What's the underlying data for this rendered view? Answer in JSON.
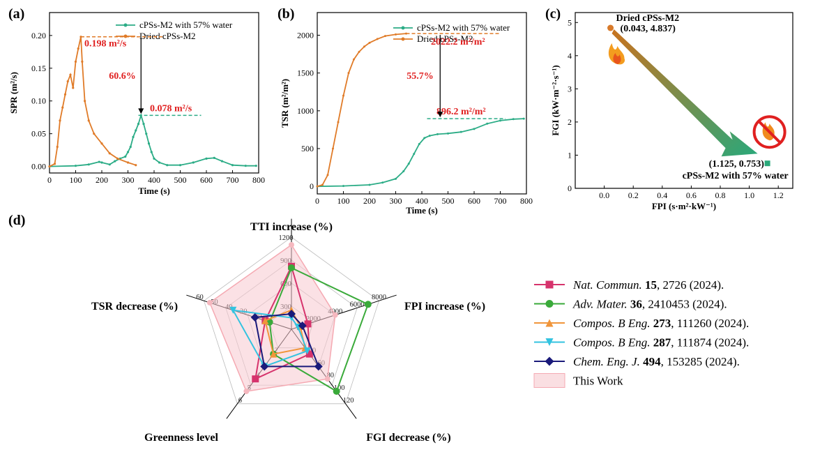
{
  "colors": {
    "wet": "#2bac86",
    "dried": "#e07b28",
    "annot": "#e02020",
    "dash_dried": "#e07b28",
    "dash_wet": "#2bac86"
  },
  "panel_a": {
    "label": "(a)",
    "legend": [
      "cPSs-M2 with 57% water",
      "Dried cPSs-M2"
    ],
    "annotations": {
      "peak_dried": "0.198 m²/s",
      "peak_wet": "0.078 m²/s",
      "reduction": "60.6%"
    }
  },
  "panel_b": {
    "label": "(b)",
    "legend": [
      "cPSs-M2 with 57% water",
      "Dried cPSs-M2"
    ],
    "annotations": {
      "peak_dried": "2022.2 m²/m²",
      "peak_wet": "896.2 m²/m²",
      "reduction": "55.7%"
    }
  },
  "panel_c": {
    "label": "(c)",
    "point_labels": {
      "dried_name": "Dried cPSs-M2",
      "dried_coord": "(0.043, 4.837)",
      "wet_coord": "(1.125, 0.753)",
      "wet_name": "cPSs-M2 with 57% water"
    }
  },
  "panel_d": {
    "label": "(d)",
    "references": [
      {
        "journal": "Nat. Commun.",
        "volume": "15",
        "rest": ", 2726 (2024).",
        "color": "#d6336c",
        "marker": "square"
      },
      {
        "journal": "Adv. Mater.",
        "volume": "36",
        "rest": ", 2410453 (2024).",
        "color": "#3aaa3a",
        "marker": "circle"
      },
      {
        "journal": "Compos. B Eng.",
        "volume": "273",
        "rest": ", 111260 (2024).",
        "color": "#f0953a",
        "marker": "triangle-up"
      },
      {
        "journal": "Compos. B Eng.",
        "volume": "287",
        "rest": ", 111874 (2024).",
        "color": "#33c3e0",
        "marker": "triangle-down"
      },
      {
        "journal": "Chem. Eng. J.",
        "volume": "494",
        "rest": ", 153285 (2024).",
        "color": "#1a1a7a",
        "marker": "diamond"
      }
    ],
    "this_work_label": "This Work",
    "this_work_color": "#f7c9cf"
  },
  "chart_data": [
    {
      "type": "line",
      "xlabel": "Time (s)",
      "ylabel": "SPR (m²/s)",
      "xlim": [
        0,
        800
      ],
      "ylim": [
        -0.01,
        0.235
      ],
      "xticks": [
        0,
        100,
        200,
        300,
        400,
        500,
        600,
        700,
        800
      ],
      "yticks": [
        0.0,
        0.05,
        0.1,
        0.15,
        0.2
      ],
      "ytick_labels": [
        "0.00",
        "0.05",
        "0.10",
        "0.15",
        "0.20"
      ],
      "series": [
        {
          "name": "cPSs-M2 with 57% water",
          "x": [
            0,
            100,
            150,
            190,
            200,
            230,
            250,
            270,
            290,
            300,
            310,
            320,
            330,
            340,
            350,
            360,
            370,
            380,
            390,
            400,
            420,
            450,
            500,
            550,
            600,
            630,
            660,
            700,
            750,
            790
          ],
          "y": [
            0,
            0.001,
            0.003,
            0.007,
            0.006,
            0.003,
            0.008,
            0.012,
            0.015,
            0.022,
            0.03,
            0.045,
            0.055,
            0.065,
            0.078,
            0.065,
            0.05,
            0.035,
            0.022,
            0.012,
            0.006,
            0.002,
            0.002,
            0.006,
            0.012,
            0.013,
            0.008,
            0.002,
            0.001,
            0.001
          ]
        },
        {
          "name": "Dried cPSs-M2",
          "x": [
            0,
            20,
            30,
            40,
            50,
            60,
            70,
            80,
            90,
            100,
            110,
            120,
            125,
            135,
            150,
            170,
            200,
            230,
            260,
            300,
            330
          ],
          "y": [
            0,
            0.004,
            0.03,
            0.07,
            0.09,
            0.11,
            0.13,
            0.14,
            0.12,
            0.16,
            0.18,
            0.198,
            0.16,
            0.1,
            0.07,
            0.05,
            0.035,
            0.02,
            0.012,
            0.006,
            0.002
          ]
        }
      ]
    },
    {
      "type": "line",
      "xlabel": "Time (s)",
      "ylabel": "TSR (m²/m²)",
      "xlim": [
        0,
        800
      ],
      "ylim": [
        -100,
        2300
      ],
      "xticks": [
        0,
        100,
        200,
        300,
        400,
        500,
        600,
        700,
        800
      ],
      "yticks": [
        0,
        500,
        1000,
        1500,
        2000
      ],
      "series": [
        {
          "name": "cPSs-M2 with 57% water",
          "x": [
            0,
            100,
            200,
            250,
            300,
            330,
            350,
            370,
            390,
            410,
            430,
            460,
            500,
            550,
            600,
            650,
            700,
            750,
            790
          ],
          "y": [
            0,
            5,
            20,
            50,
            100,
            200,
            300,
            430,
            560,
            640,
            670,
            690,
            700,
            720,
            760,
            830,
            870,
            890,
            896.2
          ]
        },
        {
          "name": "Dried cPSs-M2",
          "x": [
            0,
            20,
            40,
            60,
            80,
            100,
            120,
            140,
            160,
            180,
            200,
            230,
            260,
            300,
            340
          ],
          "y": [
            0,
            20,
            150,
            500,
            850,
            1200,
            1500,
            1680,
            1780,
            1850,
            1900,
            1950,
            1990,
            2010,
            2022.2
          ]
        }
      ]
    },
    {
      "type": "scatter",
      "xlabel": "FPI (s·m²·kW⁻¹)",
      "ylabel": "FGI (kW·m⁻²·s⁻¹)",
      "xlim": [
        -0.2,
        1.3
      ],
      "ylim": [
        0,
        5.3
      ],
      "xticks": [
        0.0,
        0.2,
        0.4,
        0.6,
        0.8,
        1.0,
        1.2
      ],
      "xtick_labels": [
        "0.0",
        "0.2",
        "0.4",
        "0.6",
        "0.8",
        "1.0",
        "1.2"
      ],
      "yticks": [
        0,
        1,
        2,
        3,
        4,
        5
      ],
      "points": [
        {
          "name": "Dried cPSs-M2",
          "x": 0.043,
          "y": 4.837
        },
        {
          "name": "cPSs-M2 with 57% water",
          "x": 1.125,
          "y": 0.753
        }
      ]
    },
    {
      "type": "radar",
      "axes": [
        {
          "label": "TTI increase (%)",
          "max": 1200,
          "ticks": [
            300,
            600,
            900,
            1200
          ]
        },
        {
          "label": "FPI increase (%)",
          "max": 8000,
          "ticks": [
            2000,
            4000,
            6000,
            8000
          ]
        },
        {
          "label": "FGI decrease (%)",
          "max": 120,
          "ticks": [
            40,
            60,
            80,
            100,
            120
          ]
        },
        {
          "label": "Greenness level",
          "max": 6,
          "ticks": [
            2,
            4,
            5,
            6
          ]
        },
        {
          "label": "TSR decrease (%)",
          "max": 60,
          "ticks": [
            20,
            30,
            40,
            50,
            60
          ]
        }
      ],
      "series": [
        {
          "name": "Nat. Commun. 15, 2726 (2024).",
          "values": [
            820,
            1500,
            40,
            4,
            18
          ]
        },
        {
          "name": "Adv. Mater. 36, 2410453 (2024).",
          "values": [
            800,
            7000,
            100,
            2,
            15
          ]
        },
        {
          "name": "Compos. B Eng. 273, 111260 (2024).",
          "values": [
            250,
            800,
            30,
            2,
            18
          ]
        },
        {
          "name": "Compos. B Eng. 287, 111874 (2024).",
          "values": [
            150,
            600,
            35,
            3,
            40
          ]
        },
        {
          "name": "Chem. Eng. J. 494, 153285 (2024).",
          "values": [
            200,
            1000,
            60,
            3,
            25
          ]
        },
        {
          "name": "This Work",
          "values": [
            1100,
            4000,
            80,
            5,
            56
          ]
        }
      ]
    }
  ]
}
